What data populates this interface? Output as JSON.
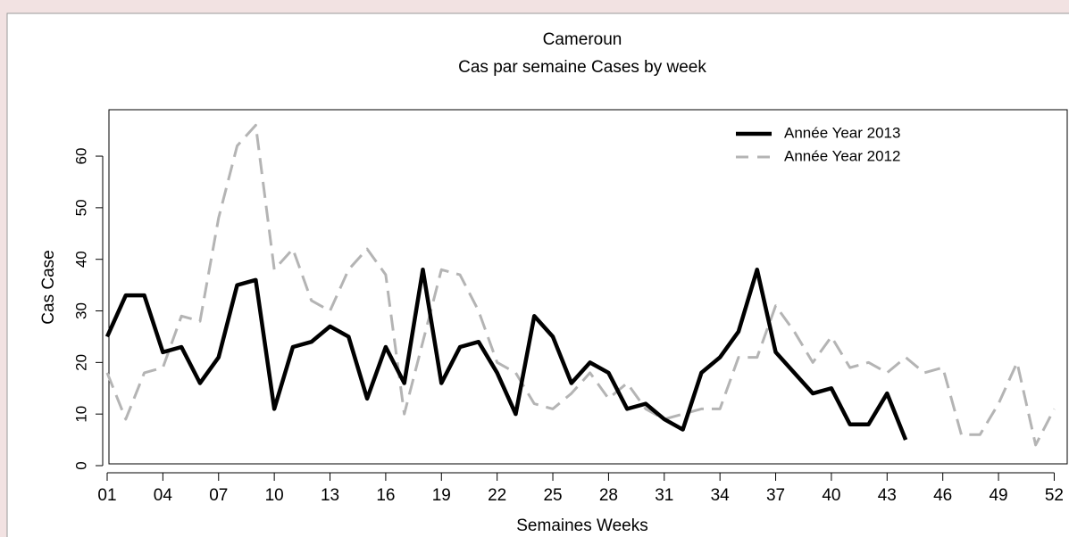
{
  "chart_data": {
    "type": "line",
    "title": "Cameroun",
    "subtitle": "Cas par semaine Cases by week",
    "x_label": "Semaines Weeks",
    "y_label": "Cas Case",
    "xlim": [
      1,
      52.7
    ],
    "ylim": [
      0,
      69
    ],
    "xticks": [
      {
        "value": 1,
        "label": "01"
      },
      {
        "value": 4,
        "label": "04"
      },
      {
        "value": 7,
        "label": "07"
      },
      10,
      13,
      16,
      19,
      22,
      25,
      28,
      31,
      34,
      37,
      40,
      43,
      46,
      49,
      52
    ],
    "yticks": [
      0,
      10,
      20,
      30,
      40,
      50,
      60
    ],
    "legend": "top-right",
    "series": [
      {
        "name": "Année Year 2013",
        "color": "#000000",
        "dash": false,
        "x": [
          1,
          2,
          3,
          4,
          5,
          6,
          7,
          8,
          9,
          10,
          11,
          12,
          13,
          14,
          15,
          16,
          17,
          18,
          19,
          20,
          21,
          22,
          23,
          24,
          25,
          26,
          27,
          28,
          29,
          30,
          31,
          32,
          33,
          34,
          35,
          36,
          37,
          38,
          39,
          40,
          41,
          42,
          43,
          44
        ],
        "values": [
          25,
          33,
          33,
          22,
          23,
          16,
          21,
          35,
          36,
          11,
          23,
          24,
          27,
          25,
          13,
          23,
          16,
          38,
          16,
          23,
          24,
          18,
          10,
          29,
          25,
          16,
          20,
          18,
          11,
          12,
          9,
          7,
          18,
          21,
          26,
          38,
          22,
          18,
          14,
          15,
          8,
          8,
          14,
          5
        ]
      },
      {
        "name": "Année Year 2012",
        "color": "#b4b4b4",
        "dash": true,
        "x": [
          1,
          2,
          3,
          4,
          5,
          6,
          7,
          8,
          9,
          10,
          11,
          12,
          13,
          14,
          15,
          16,
          17,
          18,
          19,
          20,
          21,
          22,
          23,
          24,
          25,
          26,
          27,
          28,
          29,
          30,
          31,
          32,
          33,
          34,
          35,
          36,
          37,
          38,
          39,
          40,
          41,
          42,
          43,
          44,
          45,
          46,
          47,
          48,
          49,
          50,
          51,
          52
        ],
        "values": [
          18,
          9,
          18,
          19,
          29,
          28,
          48,
          62,
          66,
          38,
          42,
          32,
          30,
          38,
          42,
          37,
          10,
          24,
          38,
          37,
          30,
          20,
          18,
          12,
          11,
          14,
          18,
          13,
          16,
          11,
          9,
          10,
          11,
          11,
          21,
          21,
          31,
          26,
          20,
          25,
          19,
          20,
          18,
          21,
          18,
          19,
          6,
          6,
          12,
          20,
          4,
          11
        ]
      }
    ]
  }
}
